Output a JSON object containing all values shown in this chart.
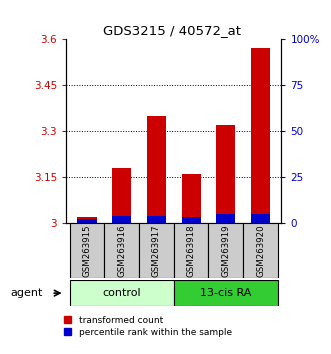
{
  "title": "GDS3215 / 40572_at",
  "samples": [
    "GSM263915",
    "GSM263916",
    "GSM263917",
    "GSM263918",
    "GSM263919",
    "GSM263920"
  ],
  "red_values": [
    3.02,
    3.18,
    3.35,
    3.16,
    3.32,
    3.57
  ],
  "blue_values": [
    2,
    4,
    4,
    3,
    5,
    5
  ],
  "ylim_left": [
    3.0,
    3.6
  ],
  "ylim_right": [
    0,
    100
  ],
  "yticks_left": [
    3.0,
    3.15,
    3.3,
    3.45,
    3.6
  ],
  "yticks_right": [
    0,
    25,
    50,
    75,
    100
  ],
  "ytick_labels_left": [
    "3",
    "3.15",
    "3.3",
    "3.45",
    "3.6"
  ],
  "ytick_labels_right": [
    "0",
    "25",
    "50",
    "75",
    "100%"
  ],
  "red_color": "#cc0000",
  "blue_color": "#0000cc",
  "bar_width": 0.55,
  "control_bg": "#ccffcc",
  "treatment_bg": "#33cc33",
  "sample_bg": "#cccccc",
  "legend_red_label": "transformed count",
  "legend_blue_label": "percentile rank within the sample",
  "control_label": "control",
  "treatment_label": "13-cis RA"
}
